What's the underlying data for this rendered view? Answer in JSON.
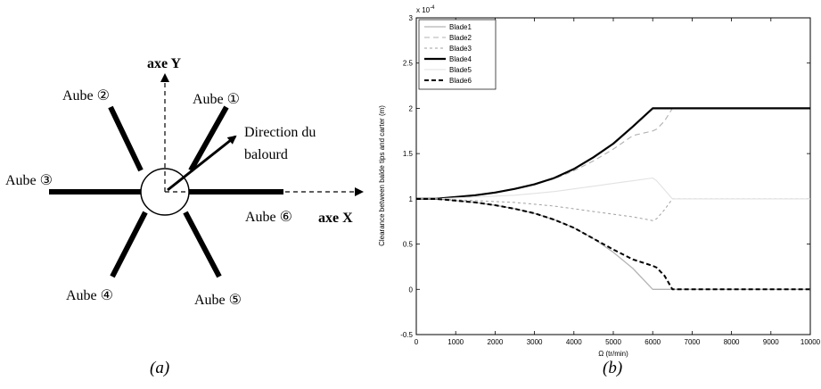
{
  "diagram": {
    "axis_y_label": "axe Y",
    "axis_x_label": "axe X",
    "direction_label_line1": "Direction du",
    "direction_label_line2": "balourd",
    "blade_word": "Aube",
    "blades": [
      {
        "num": "1",
        "symbol": "①"
      },
      {
        "num": "2",
        "symbol": "②"
      },
      {
        "num": "3",
        "symbol": "③"
      },
      {
        "num": "4",
        "symbol": "④"
      },
      {
        "num": "5",
        "symbol": "⑤"
      },
      {
        "num": "6",
        "symbol": "⑥"
      }
    ],
    "caption": "(a)"
  },
  "chart_caption": "(b)",
  "chart_data": {
    "type": "line",
    "title": "",
    "xlabel": "Ω (tr/min)",
    "ylabel": "Clearance between balde tips and carter (m)",
    "y_exponent_label": "x 10",
    "y_exponent_power": "-4",
    "xlim": [
      0,
      10000
    ],
    "ylim": [
      -0.5,
      3
    ],
    "xticks": [
      "0",
      "1000",
      "2000",
      "3000",
      "4000",
      "5000",
      "6000",
      "7000",
      "8000",
      "9000",
      "10000"
    ],
    "yticks": [
      "-0.5",
      "0",
      "0.5",
      "1",
      "1.5",
      "2",
      "2.5",
      "3"
    ],
    "legend_position": "top-left",
    "grid": false,
    "x": [
      0,
      500,
      1000,
      1500,
      2000,
      2500,
      3000,
      3500,
      4000,
      4500,
      5000,
      5500,
      6000,
      6100,
      6300,
      6500,
      7000,
      8000,
      9000,
      10000
    ],
    "series": [
      {
        "name": "Blade1",
        "color": "#b4b4b4",
        "dash": "solid",
        "width": 1.3,
        "values": [
          1.0,
          1.0,
          0.98,
          0.96,
          0.93,
          0.89,
          0.84,
          0.77,
          0.68,
          0.56,
          0.41,
          0.23,
          0.0,
          0.0,
          0.0,
          0.0,
          0.0,
          0.0,
          0.0,
          0.0
        ]
      },
      {
        "name": "Blade2",
        "color": "#b0b0b0",
        "dash": "6,4",
        "width": 1.1,
        "values": [
          1.0,
          1.0,
          1.02,
          1.04,
          1.07,
          1.11,
          1.16,
          1.22,
          1.31,
          1.42,
          1.55,
          1.7,
          1.75,
          1.77,
          1.86,
          2.0,
          2.0,
          2.0,
          2.0,
          2.0
        ]
      },
      {
        "name": "Blade3",
        "color": "#a0a0a0",
        "dash": "3,3",
        "width": 1.0,
        "values": [
          1.0,
          1.0,
          0.99,
          0.98,
          0.97,
          0.96,
          0.94,
          0.92,
          0.89,
          0.86,
          0.83,
          0.8,
          0.76,
          0.78,
          0.88,
          1.0,
          1.0,
          1.0,
          1.0,
          1.0
        ]
      },
      {
        "name": "Blade4",
        "color": "#000000",
        "dash": "solid",
        "width": 2.2,
        "values": [
          1.0,
          1.0,
          1.02,
          1.04,
          1.07,
          1.11,
          1.16,
          1.23,
          1.33,
          1.46,
          1.61,
          1.8,
          2.0,
          2.0,
          2.0,
          2.0,
          2.0,
          2.0,
          2.0,
          2.0
        ]
      },
      {
        "name": "Blade5",
        "color": "#e2e2e2",
        "dash": "solid",
        "width": 1.1,
        "values": [
          1.0,
          1.0,
          1.01,
          1.02,
          1.03,
          1.04,
          1.06,
          1.08,
          1.11,
          1.14,
          1.17,
          1.2,
          1.23,
          1.2,
          1.1,
          1.0,
          1.0,
          1.0,
          1.0,
          1.0
        ]
      },
      {
        "name": "Blade6",
        "color": "#000000",
        "dash": "5,3",
        "width": 2.0,
        "values": [
          1.0,
          1.0,
          0.98,
          0.96,
          0.93,
          0.89,
          0.84,
          0.77,
          0.68,
          0.56,
          0.44,
          0.33,
          0.26,
          0.24,
          0.15,
          0.0,
          0.0,
          0.0,
          0.0,
          0.0
        ]
      }
    ]
  }
}
